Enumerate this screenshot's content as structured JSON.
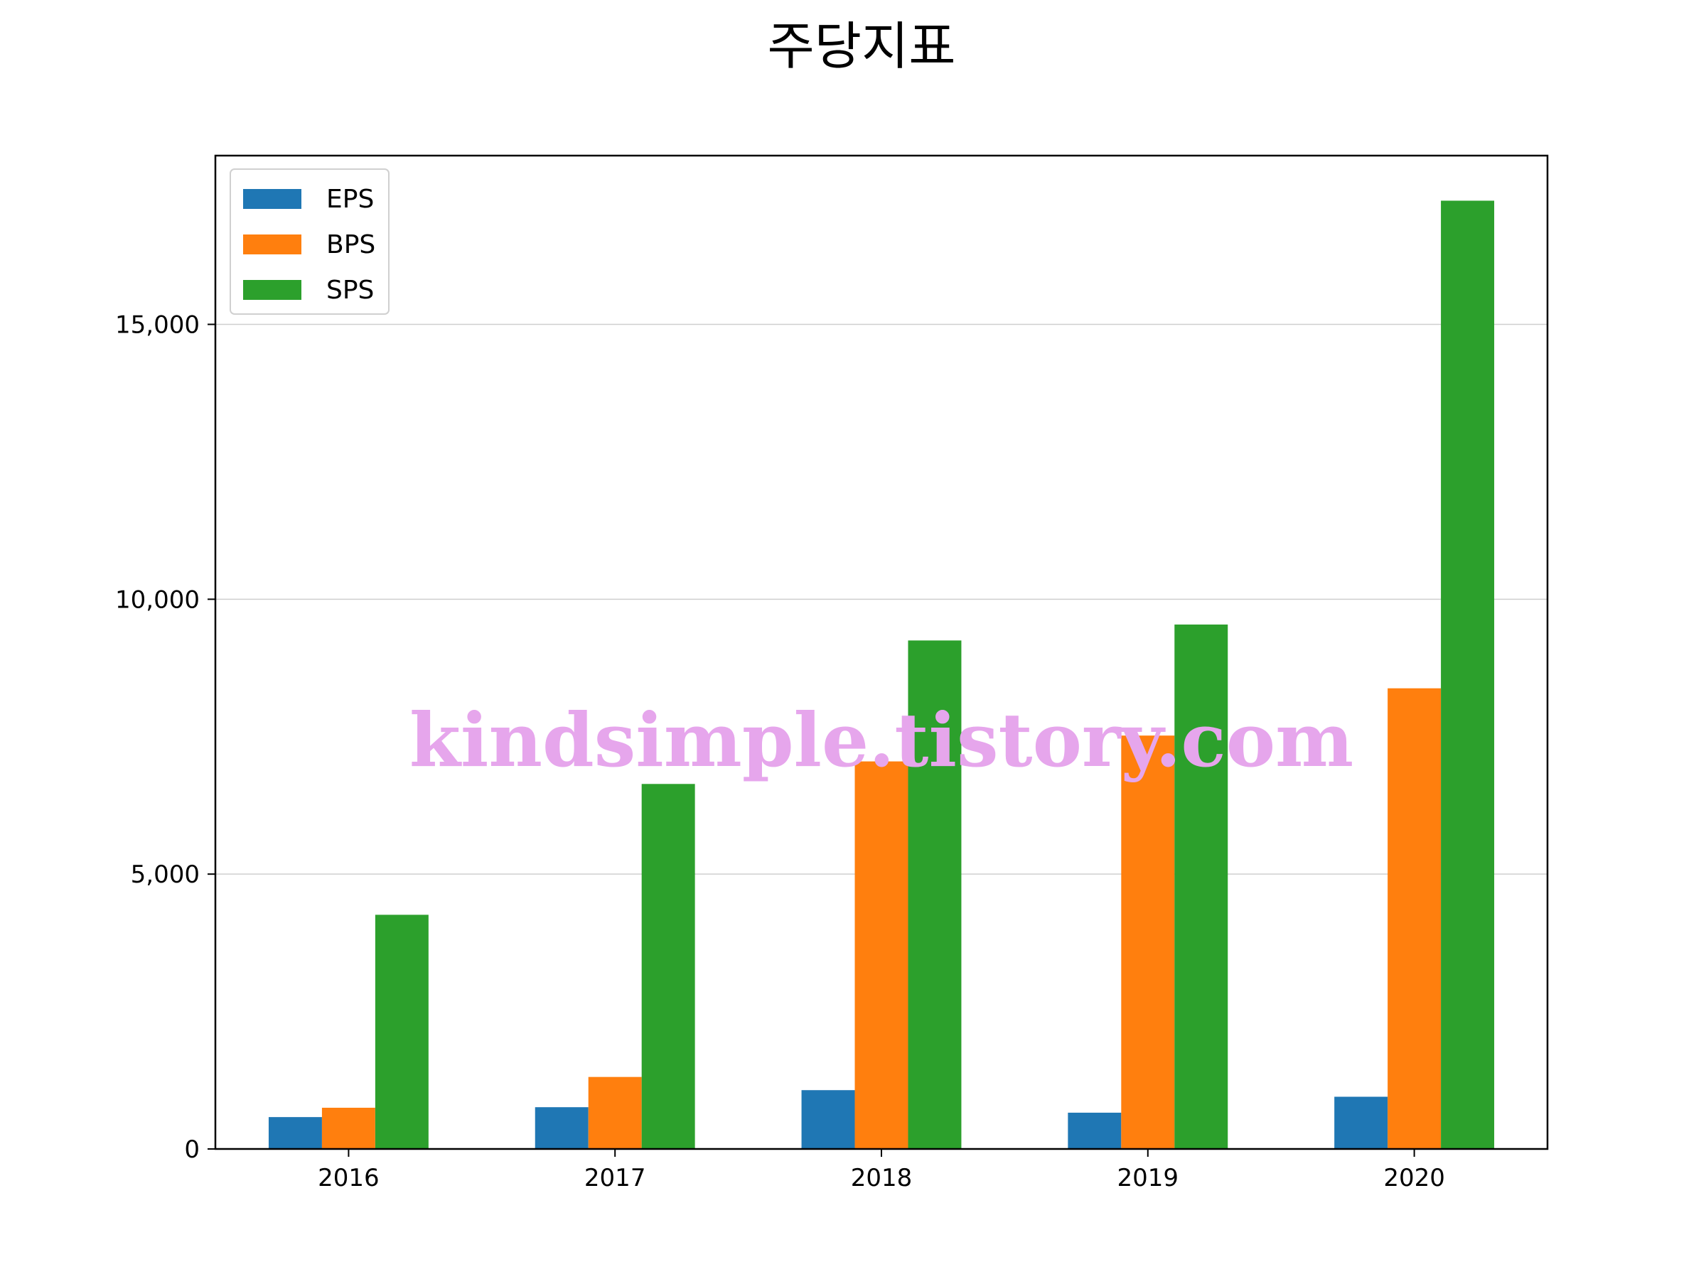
{
  "chart_data": {
    "type": "bar",
    "title": "주당지표",
    "xlabel": "",
    "ylabel": "",
    "categories": [
      "2016",
      "2017",
      "2018",
      "2019",
      "2020"
    ],
    "series": [
      {
        "name": "EPS",
        "color": "#1f77b4",
        "values": [
          580,
          760,
          1070,
          660,
          950
        ]
      },
      {
        "name": "BPS",
        "color": "#ff7f0e",
        "values": [
          750,
          1310,
          7050,
          7520,
          8380
        ]
      },
      {
        "name": "SPS",
        "color": "#2ca02c",
        "values": [
          4260,
          6640,
          9250,
          9540,
          17250
        ]
      }
    ],
    "ylim": [
      0,
      18070
    ],
    "yticks": [
      0,
      5000,
      10000,
      15000
    ],
    "ytick_labels": [
      "0",
      "5,000",
      "10,000",
      "15,000"
    ],
    "grid": "horizontal",
    "legend": "top-left",
    "watermark": "kindsimple.tistory.com"
  }
}
